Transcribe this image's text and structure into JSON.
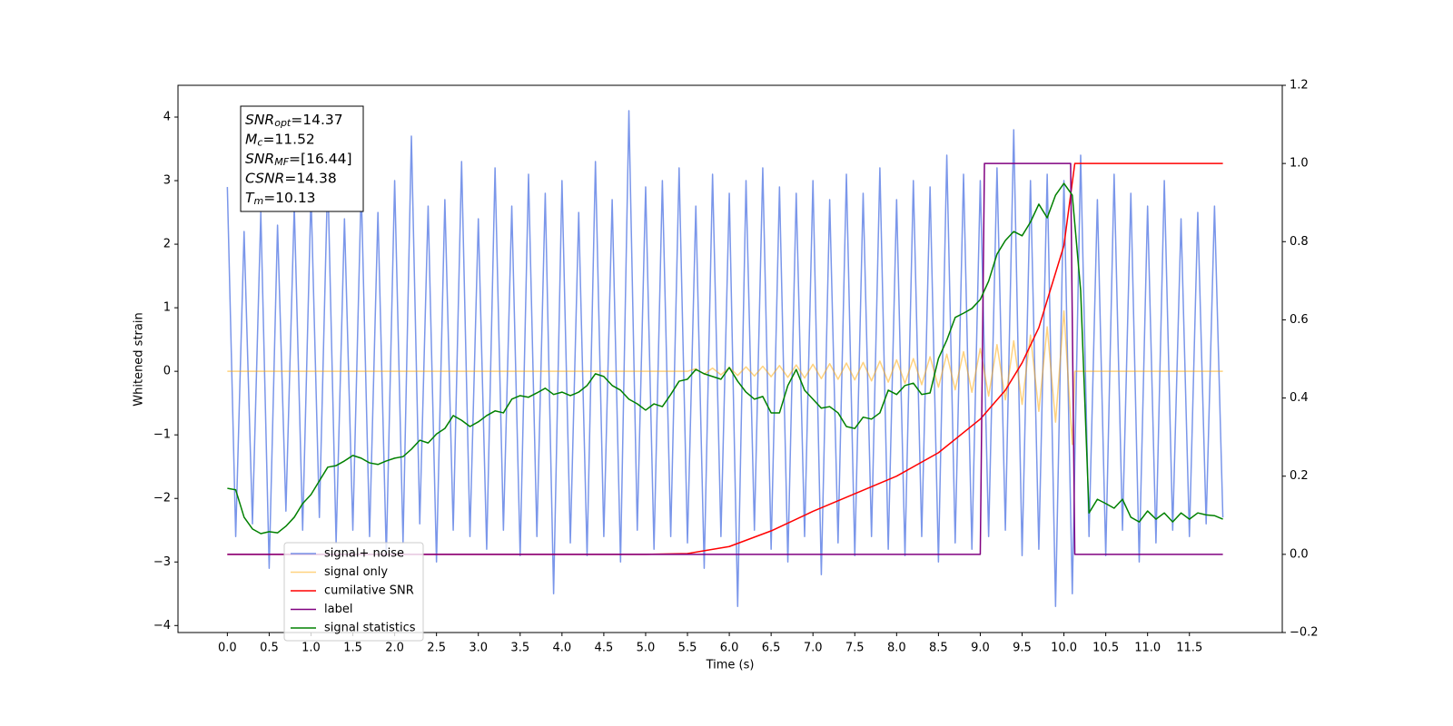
{
  "chart_data": {
    "type": "line",
    "xlabel": "Time (s)",
    "ylabel": "Whitened strain",
    "xlim": [
      -0.59,
      12.61
    ],
    "ylim": [
      -4.11,
      4.5
    ],
    "y2lim": [
      -0.2,
      1.2
    ],
    "xticks": [
      {
        "value": 0,
        "label": "0.0"
      },
      {
        "value": 0.5,
        "label": "0.5"
      },
      {
        "value": 1,
        "label": "1.0"
      },
      {
        "value": 1.5,
        "label": "1.5"
      },
      {
        "value": 2,
        "label": "2.0"
      },
      {
        "value": 2.5,
        "label": "2.5"
      },
      {
        "value": 3,
        "label": "3.0"
      },
      {
        "value": 3.5,
        "label": "3.5"
      },
      {
        "value": 4,
        "label": "4.0"
      },
      {
        "value": 4.5,
        "label": "4.5"
      },
      {
        "value": 5,
        "label": "5.0"
      },
      {
        "value": 5.5,
        "label": "5.5"
      },
      {
        "value": 6,
        "label": "6.0"
      },
      {
        "value": 6.5,
        "label": "6.5"
      },
      {
        "value": 7,
        "label": "7.0"
      },
      {
        "value": 7.5,
        "label": "7.5"
      },
      {
        "value": 8,
        "label": "8.0"
      },
      {
        "value": 8.5,
        "label": "8.5"
      },
      {
        "value": 9,
        "label": "9.0"
      },
      {
        "value": 9.5,
        "label": "9.5"
      },
      {
        "value": 10,
        "label": "10.0"
      },
      {
        "value": 10.5,
        "label": "10.5"
      },
      {
        "value": 11,
        "label": "11.0"
      },
      {
        "value": 11.5,
        "label": "11.5"
      }
    ],
    "yticks": [
      {
        "value": -4,
        "label": "−4"
      },
      {
        "value": -3,
        "label": "−3"
      },
      {
        "value": -2,
        "label": "−2"
      },
      {
        "value": -1,
        "label": "−1"
      },
      0,
      1,
      2,
      3,
      4
    ],
    "y2ticks": [
      {
        "value": -0.2,
        "label": "−0.2"
      },
      {
        "value": 0,
        "label": "0.0"
      },
      0.2,
      0.4,
      0.6,
      0.8,
      {
        "value": 1,
        "label": "1.0"
      },
      1.2
    ],
    "grid": false,
    "legend_loc": "lower left",
    "info_box": [
      {
        "text": "SNR",
        "sub": "opt",
        "rest": "=14.37"
      },
      {
        "text": "M",
        "sub": "c",
        "rest": "=11.52"
      },
      {
        "text": "SNR",
        "sub": "MF",
        "rest": "=[16.44]"
      },
      {
        "text": "CSNR",
        "rest": "=14.38"
      },
      {
        "text": "T",
        "sub": "m",
        "rest": "=10.13"
      }
    ],
    "x": [
      0,
      0.1,
      0.2,
      0.3,
      0.4,
      0.5,
      0.6,
      0.7,
      0.8,
      0.9,
      1,
      1.1,
      1.2,
      1.3,
      1.4,
      1.5,
      1.6,
      1.7,
      1.8,
      1.9,
      2,
      2.1,
      2.2,
      2.3,
      2.4,
      2.5,
      2.6,
      2.7,
      2.8,
      2.9,
      3,
      3.1,
      3.2,
      3.3,
      3.4,
      3.5,
      3.6,
      3.7,
      3.8,
      3.9,
      4,
      4.1,
      4.2,
      4.3,
      4.4,
      4.5,
      4.6,
      4.7,
      4.8,
      4.9,
      5,
      5.1,
      5.2,
      5.3,
      5.4,
      5.5,
      5.6,
      5.7,
      5.8,
      5.9,
      6,
      6.1,
      6.2,
      6.3,
      6.4,
      6.5,
      6.6,
      6.7,
      6.8,
      6.9,
      7,
      7.1,
      7.2,
      7.3,
      7.4,
      7.5,
      7.6,
      7.7,
      7.8,
      7.9,
      8,
      8.1,
      8.2,
      8.3,
      8.4,
      8.5,
      8.6,
      8.7,
      8.8,
      8.9,
      9,
      9.1,
      9.2,
      9.3,
      9.4,
      9.5,
      9.6,
      9.7,
      9.8,
      9.9,
      10,
      10.1,
      10.2,
      10.3,
      10.4,
      10.5,
      10.6,
      10.7,
      10.8,
      10.9,
      11,
      11.1,
      11.2,
      11.3,
      11.4,
      11.5,
      11.6,
      11.7,
      11.8,
      11.9
    ],
    "series": [
      {
        "name": "signal+ noise",
        "color": "#4169e1",
        "alpha": 0.7,
        "values": [
          2.9,
          -2.6,
          2.2,
          -2.4,
          2.5,
          -3.1,
          2.3,
          -2.2,
          2.6,
          -2.5,
          2.8,
          -2.3,
          3.1,
          -2.7,
          2.4,
          -2.5,
          2.9,
          -2.6,
          2.5,
          -2.9,
          3.0,
          -2.7,
          3.7,
          -2.4,
          2.6,
          -3.0,
          2.7,
          -2.5,
          3.3,
          -2.6,
          2.4,
          -2.8,
          3.2,
          -2.5,
          2.6,
          -2.9,
          3.1,
          -2.6,
          2.8,
          -3.5,
          3.0,
          -2.7,
          2.5,
          -2.9,
          3.3,
          -2.6,
          2.7,
          -3.0,
          4.1,
          -2.5,
          2.9,
          -2.8,
          3.0,
          -2.6,
          3.2,
          -2.7,
          2.6,
          -3.1,
          3.1,
          -2.6,
          2.8,
          -3.7,
          3.0,
          -2.5,
          3.2,
          -2.8,
          2.9,
          -3.0,
          2.8,
          -2.6,
          3.0,
          -3.2,
          2.7,
          -2.7,
          3.1,
          -2.9,
          2.8,
          -2.6,
          3.2,
          -2.8,
          2.7,
          -2.9,
          3.0,
          -2.6,
          2.9,
          -3.0,
          3.4,
          -2.7,
          3.1,
          -2.8,
          3.0,
          -2.6,
          3.2,
          -2.5,
          3.8,
          -2.9,
          3.0,
          -2.8,
          3.1,
          -3.7,
          3.0,
          -3.5,
          3.4,
          -2.6,
          2.7,
          -2.9,
          3.1,
          -2.5,
          2.8,
          -3.0,
          2.6,
          -2.7,
          3.0,
          -2.5,
          2.4,
          -2.6,
          2.5,
          -2.4,
          2.6,
          -2.3
        ]
      },
      {
        "name": "signal only",
        "color": "orange",
        "alpha": 0.5,
        "x": [
          0,
          5.5,
          5.6,
          5.7,
          5.8,
          5.9,
          6,
          6.1,
          6.2,
          6.3,
          6.4,
          6.5,
          6.6,
          6.7,
          6.8,
          6.9,
          7,
          7.1,
          7.2,
          7.3,
          7.4,
          7.5,
          7.6,
          7.7,
          7.8,
          7.9,
          8,
          8.1,
          8.2,
          8.3,
          8.4,
          8.5,
          8.6,
          8.7,
          8.8,
          8.9,
          9,
          9.1,
          9.2,
          9.3,
          9.4,
          9.5,
          9.6,
          9.7,
          9.8,
          9.9,
          10,
          10.1,
          10.13,
          11.9
        ],
        "values": [
          0,
          0,
          0.04,
          -0.045,
          0.05,
          -0.055,
          0.06,
          -0.065,
          0.07,
          -0.075,
          0.08,
          -0.085,
          0.09,
          -0.095,
          0.1,
          -0.105,
          0.11,
          -0.115,
          0.12,
          -0.125,
          0.13,
          -0.135,
          0.14,
          -0.15,
          0.16,
          -0.17,
          0.18,
          -0.19,
          0.2,
          -0.21,
          0.23,
          -0.25,
          0.27,
          -0.29,
          0.31,
          -0.33,
          0.36,
          -0.39,
          0.42,
          -0.45,
          0.48,
          -0.52,
          0.57,
          -0.63,
          0.7,
          -0.8,
          0.95,
          -1.15,
          0,
          0
        ]
      },
      {
        "name": "cumilative SNR",
        "color": "red",
        "axis": "y2",
        "x": [
          0,
          5,
          5.5,
          6,
          6.5,
          7,
          7.5,
          8,
          8.5,
          9,
          9.3,
          9.5,
          9.7,
          9.9,
          10,
          10.13,
          11.9
        ],
        "values": [
          0,
          0,
          0.002,
          0.02,
          0.06,
          0.11,
          0.155,
          0.2,
          0.26,
          0.346,
          0.42,
          0.49,
          0.58,
          0.72,
          0.79,
          1,
          1
        ]
      },
      {
        "name": "label",
        "color": "purple",
        "axis": "y2",
        "x": [
          0,
          9,
          9.05,
          10.08,
          10.13,
          11.9
        ],
        "values": [
          0,
          0,
          1,
          1,
          0,
          0
        ]
      },
      {
        "name": "signal statistics",
        "color": "green",
        "axis": "y2",
        "values": [
          0.169,
          0.165,
          0.095,
          0.065,
          0.053,
          0.058,
          0.055,
          0.072,
          0.095,
          0.13,
          0.153,
          0.188,
          0.223,
          0.227,
          0.239,
          0.253,
          0.246,
          0.234,
          0.23,
          0.239,
          0.246,
          0.25,
          0.269,
          0.292,
          0.285,
          0.308,
          0.322,
          0.355,
          0.343,
          0.327,
          0.339,
          0.355,
          0.367,
          0.362,
          0.397,
          0.406,
          0.402,
          0.413,
          0.425,
          0.409,
          0.415,
          0.406,
          0.415,
          0.432,
          0.462,
          0.455,
          0.432,
          0.42,
          0.397,
          0.385,
          0.369,
          0.385,
          0.378,
          0.409,
          0.443,
          0.448,
          0.473,
          0.462,
          0.455,
          0.448,
          0.478,
          0.443,
          0.415,
          0.397,
          0.404,
          0.362,
          0.362,
          0.432,
          0.473,
          0.42,
          0.397,
          0.374,
          0.378,
          0.362,
          0.327,
          0.322,
          0.351,
          0.346,
          0.362,
          0.42,
          0.409,
          0.432,
          0.438,
          0.409,
          0.413,
          0.501,
          0.548,
          0.606,
          0.617,
          0.629,
          0.652,
          0.699,
          0.768,
          0.803,
          0.826,
          0.815,
          0.85,
          0.896,
          0.861,
          0.919,
          0.949,
          0.919,
          0.675,
          0.106,
          0.141,
          0.13,
          0.118,
          0.141,
          0.095,
          0.083,
          0.111,
          0.09,
          0.106,
          0.083,
          0.106,
          0.09,
          0.106,
          0.101,
          0.099,
          0.09
        ]
      }
    ]
  }
}
